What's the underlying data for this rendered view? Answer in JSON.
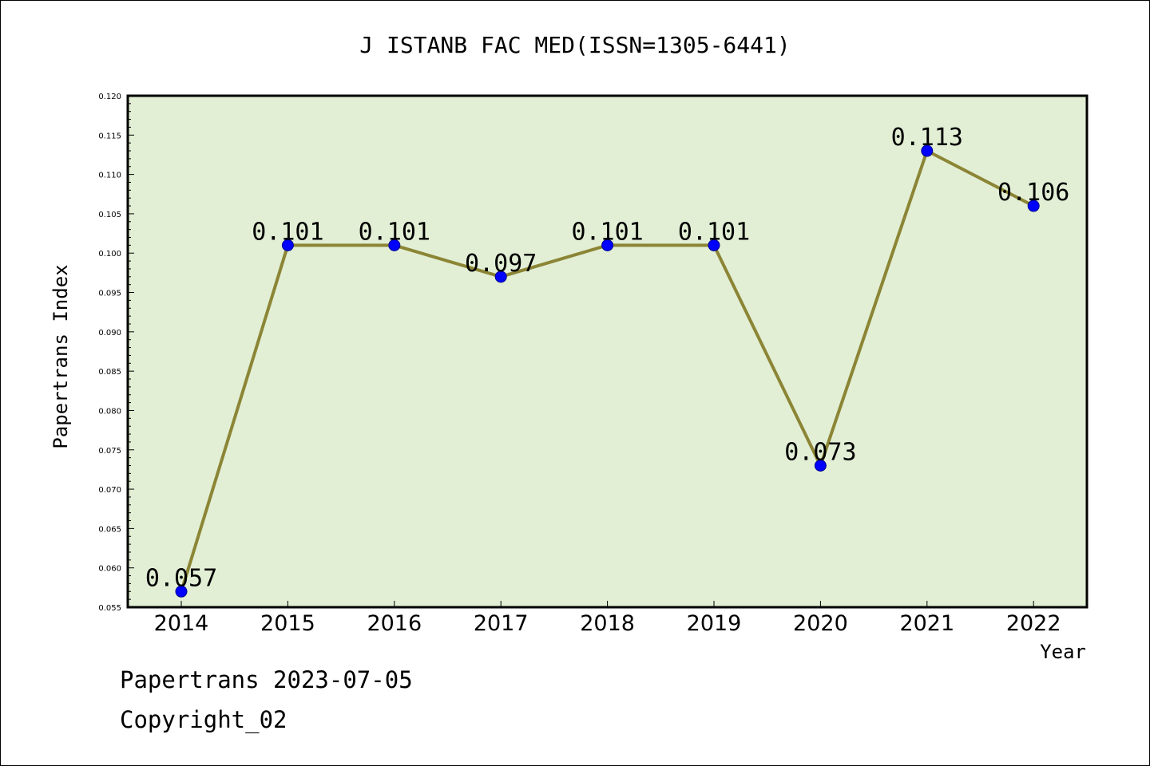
{
  "chart_data": {
    "type": "line",
    "title": "J ISTANB FAC MED(ISSN=1305-6441)",
    "xlabel": "Year",
    "ylabel": "Papertrans Index",
    "categories": [
      "2014",
      "2015",
      "2016",
      "2017",
      "2018",
      "2019",
      "2020",
      "2021",
      "2022"
    ],
    "series": [
      {
        "values": [
          0.057,
          0.101,
          0.101,
          0.097,
          0.101,
          0.101,
          0.073,
          0.113,
          0.106
        ],
        "labels": [
          "0.057",
          "0.101",
          "0.101",
          "0.097",
          "0.101",
          "0.101",
          "0.073",
          "0.113",
          "0.106"
        ]
      }
    ],
    "ylim": [
      0.055,
      0.12
    ],
    "yticks": [
      "0.055",
      "0.060",
      "0.065",
      "0.070",
      "0.075",
      "0.080",
      "0.085",
      "0.090",
      "0.095",
      "0.100",
      "0.105",
      "0.110",
      "0.115",
      "0.120"
    ],
    "grid": false,
    "colors": {
      "plot_background": "#e2efd5",
      "line": "#8b8535",
      "marker_fill": "#0000ff",
      "marker_stroke": "#00008b"
    }
  },
  "footer": {
    "line1": "Papertrans 2023-07-05",
    "line2": "Copyright_02"
  }
}
